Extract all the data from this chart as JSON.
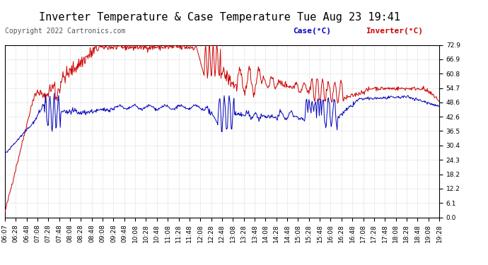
{
  "title": "Inverter Temperature & Case Temperature Tue Aug 23 19:41",
  "copyright": "Copyright 2022 Cartronics.com",
  "legend_case": "Case(°C)",
  "legend_inverter": "Inverter(°C)",
  "yticks": [
    0.0,
    6.1,
    12.2,
    18.2,
    24.3,
    30.4,
    36.5,
    42.6,
    48.6,
    54.7,
    60.8,
    66.9,
    72.9
  ],
  "xtick_labels": [
    "06:07",
    "06:28",
    "06:48",
    "07:08",
    "07:28",
    "07:48",
    "08:08",
    "08:28",
    "08:48",
    "09:08",
    "09:28",
    "09:48",
    "10:08",
    "10:28",
    "10:48",
    "11:08",
    "11:28",
    "11:48",
    "12:08",
    "12:28",
    "12:48",
    "13:08",
    "13:28",
    "13:48",
    "14:08",
    "14:28",
    "14:48",
    "15:08",
    "15:28",
    "15:48",
    "16:08",
    "16:28",
    "16:48",
    "17:08",
    "17:28",
    "17:48",
    "18:08",
    "18:28",
    "18:48",
    "19:08",
    "19:28"
  ],
  "ymin": 0.0,
  "ymax": 72.9,
  "bg_color": "#ffffff",
  "plot_bg_color": "#ffffff",
  "grid_color": "#bbbbbb",
  "title_color": "#000000",
  "case_color": "#0000bb",
  "inverter_color": "#cc0000",
  "title_fontsize": 11,
  "tick_fontsize": 6.5,
  "copyright_fontsize": 7,
  "copyright_color": "#555555"
}
